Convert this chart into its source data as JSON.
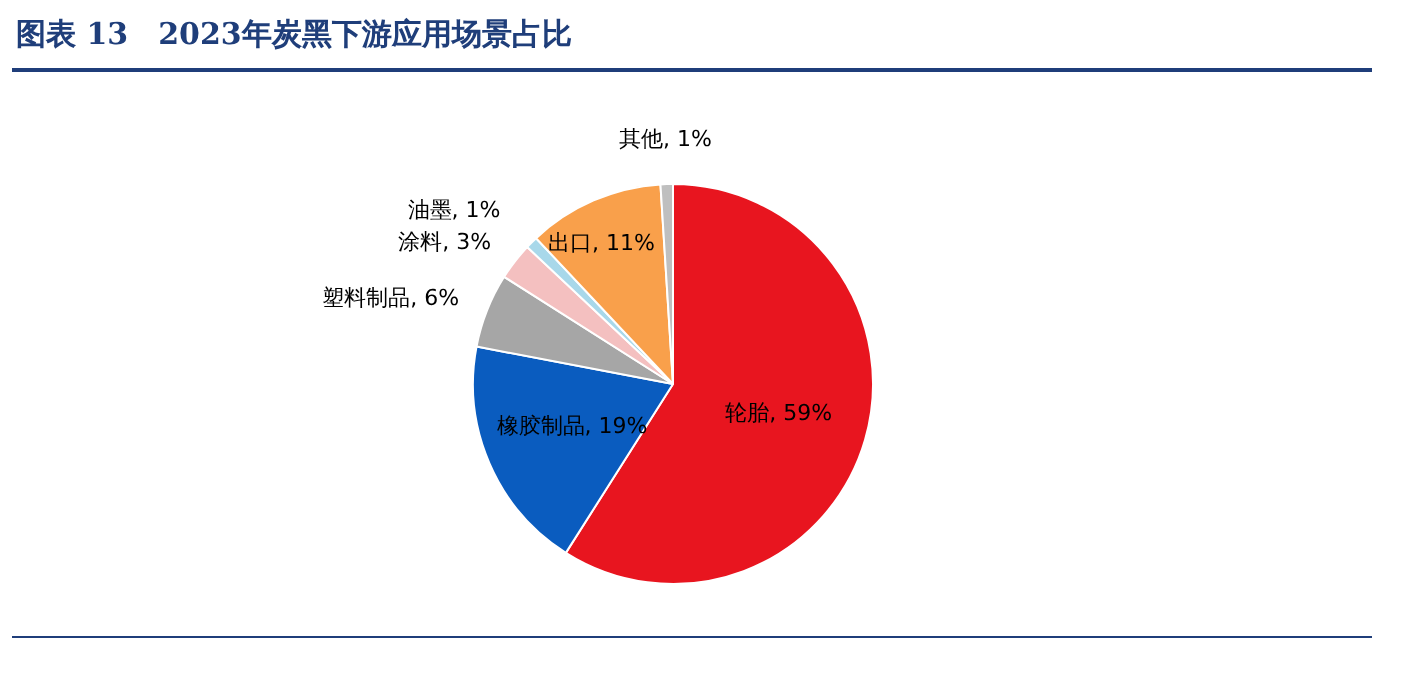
{
  "chart_data": {
    "type": "pie",
    "title": "图表 13　2023年炭黑下游应用场景占比",
    "categories": [
      "轮胎",
      "橡胶制品",
      "塑料制品",
      "涂料",
      "油墨",
      "出口",
      "其他"
    ],
    "values": [
      59,
      19,
      6,
      3,
      1,
      11,
      1
    ],
    "colors": [
      "#e8151f",
      "#0a5cbf",
      "#a6a6a6",
      "#f4c0c0",
      "#a8d8ea",
      "#f9a04b",
      "#bfbfbf"
    ],
    "value_labels": [
      "59%",
      "19%",
      "6%",
      "3%",
      "1%",
      "11%",
      "1%"
    ],
    "legend": false
  }
}
